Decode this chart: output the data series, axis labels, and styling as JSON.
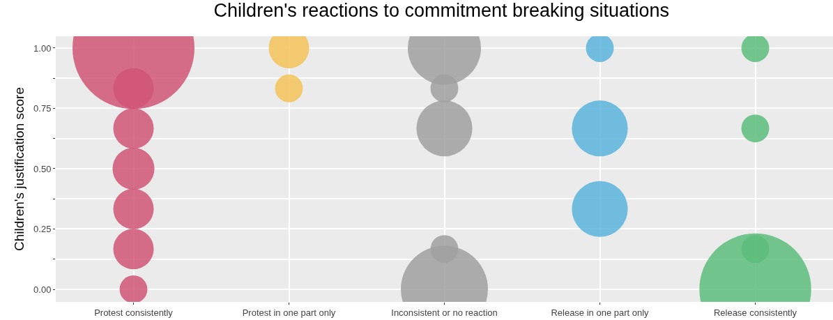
{
  "chart_data": {
    "type": "bubble",
    "title": "Children's reactions to commitment breaking situations",
    "ylabel": "Children's justification score",
    "categories": [
      "Protest consistently",
      "Protest in one part only",
      "Inconsistent or no reaction",
      "Release in one part only",
      "Release consistently"
    ],
    "series": [
      {
        "color": "#d05575",
        "x": [
          "Protest consistently",
          "Protest consistently",
          "Protest consistently",
          "Protest consistently",
          "Protest consistently",
          "Protest consistently",
          "Protest consistently"
        ],
        "values": [
          1,
          0.833,
          0.667,
          0.5,
          0.333,
          0.167,
          0
        ],
        "sizes": [
          1,
          0.11,
          0.11,
          0.118,
          0.11,
          0.11,
          0.052
        ]
      },
      {
        "color": "#f4c35b",
        "x": [
          "Protest in one part only",
          "Protest in one part only"
        ],
        "values": [
          1,
          0.833
        ],
        "sizes": [
          0.11,
          0.052
        ]
      },
      {
        "color": "#a0a0a0",
        "x": [
          "Inconsistent or no reaction",
          "Inconsistent or no reaction",
          "Inconsistent or no reaction",
          "Inconsistent or no reaction",
          "Inconsistent or no reaction"
        ],
        "values": [
          1,
          0.833,
          0.667,
          0.167,
          0
        ],
        "sizes": [
          0.36,
          0.052,
          0.21,
          0.052,
          0.51
        ]
      },
      {
        "color": "#5ab4dc",
        "x": [
          "Release in one part only",
          "Release in one part only",
          "Release in one part only"
        ],
        "values": [
          1,
          0.667,
          0.333
        ],
        "sizes": [
          0.052,
          0.21,
          0.21
        ]
      },
      {
        "color": "#5cbd7a",
        "x": [
          "Release consistently",
          "Release consistently",
          "Release consistently",
          "Release consistently"
        ],
        "values": [
          1,
          0.667,
          0.167,
          0
        ],
        "sizes": [
          0.052,
          0.052,
          0.052,
          0.84
        ]
      }
    ],
    "ylim": [
      -0.052,
      1.049
    ],
    "yticks": [
      {
        "value": 0,
        "label": "0.00"
      },
      {
        "value": 0.125,
        "label": null
      },
      {
        "value": 0.25,
        "label": "0.25"
      },
      {
        "value": 0.375,
        "label": null
      },
      {
        "value": 0.5,
        "label": "0.50"
      },
      {
        "value": 0.625,
        "label": null
      },
      {
        "value": 0.75,
        "label": "0.75"
      },
      {
        "value": 0.875,
        "label": null
      },
      {
        "value": 1,
        "label": "1.00"
      }
    ],
    "grid": true
  }
}
